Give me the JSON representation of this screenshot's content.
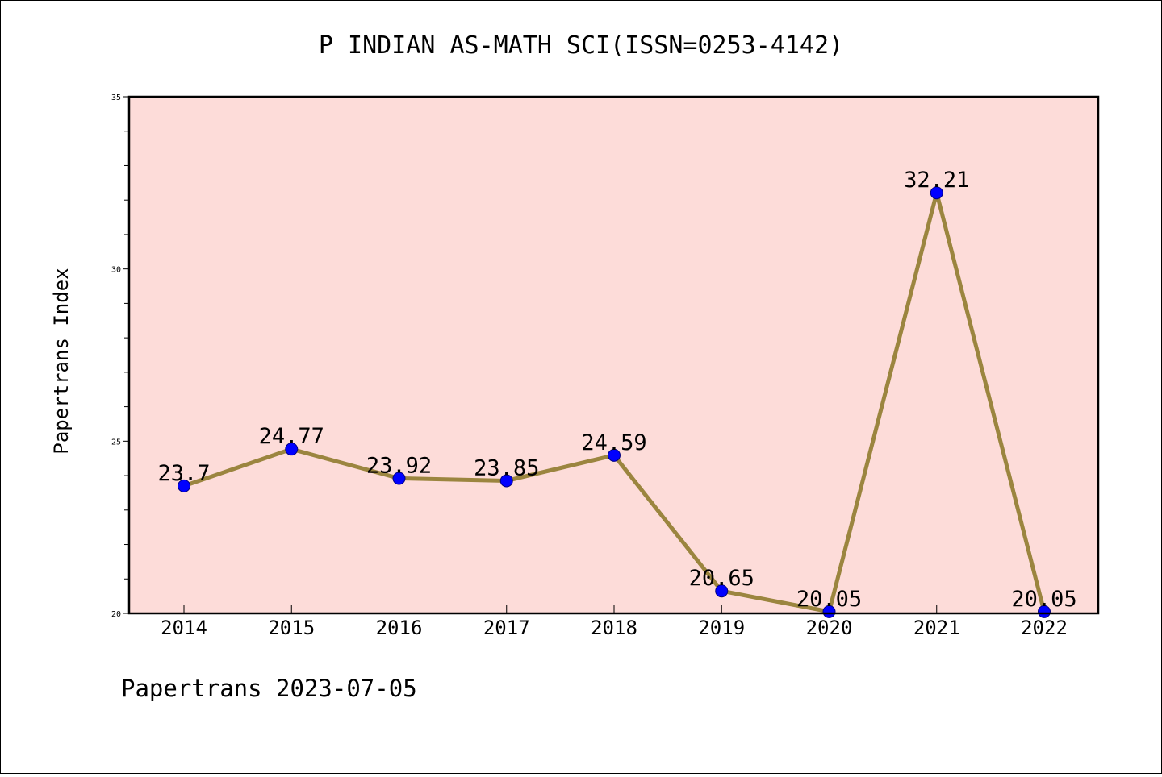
{
  "chart_data": {
    "type": "line",
    "title": "P INDIAN AS-MATH SCI(ISSN=0253-4142)",
    "xlabel": "",
    "ylabel": "Papertrans Index",
    "footer": "Papertrans 2023-07-05",
    "categories": [
      "2014",
      "2015",
      "2016",
      "2017",
      "2018",
      "2019",
      "2020",
      "2021",
      "2022"
    ],
    "values": [
      23.7,
      24.77,
      23.92,
      23.85,
      24.59,
      20.65,
      20.05,
      32.21,
      20.05
    ],
    "value_labels": [
      "23.7",
      "24.77",
      "23.92",
      "23.85",
      "24.59",
      "20.65",
      "20.05",
      "32.21",
      "20.05"
    ],
    "ylim": [
      20,
      35
    ],
    "yticks": [
      20,
      25,
      30,
      35
    ],
    "ytick_labels": [
      "20",
      "25",
      "30",
      "35"
    ],
    "grid": false,
    "colors": {
      "plot_background": "#FDDCD9",
      "line": "#9B853F",
      "marker": "#0000FF",
      "axis": "#000000",
      "text": "#000000"
    }
  }
}
